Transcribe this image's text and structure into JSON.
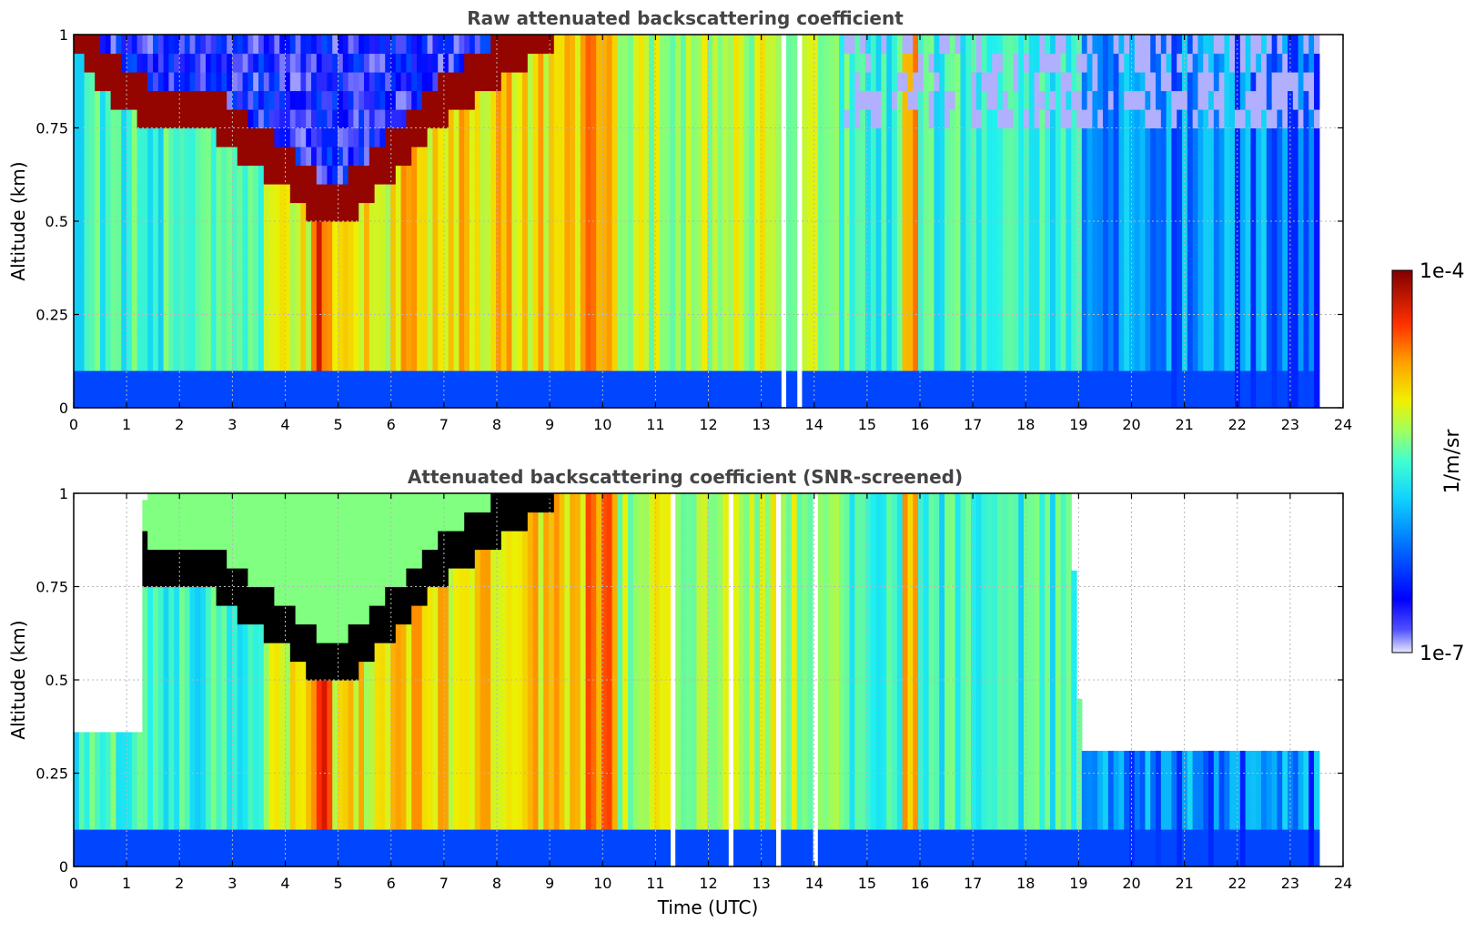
{
  "chart_data": [
    {
      "type": "heatmap",
      "title": "Raw attenuated backscattering coefficient",
      "xlabel": "",
      "ylabel": "Altitude (km)",
      "xlim": [
        0,
        24
      ],
      "ylim": [
        0,
        1
      ],
      "x_ticks": [
        "0",
        "1",
        "2",
        "3",
        "4",
        "5",
        "6",
        "7",
        "8",
        "9",
        "10",
        "11",
        "12",
        "13",
        "14",
        "15",
        "16",
        "17",
        "18",
        "19",
        "20",
        "21",
        "22",
        "23",
        "24"
      ],
      "y_ticks": [
        "0",
        "0.25",
        "0.5",
        "0.75",
        "1"
      ],
      "grid": true,
      "data_end_hour": 23.55,
      "screened": false,
      "cloud_base_km": [
        {
          "t": 0.0,
          "z": 0.92
        },
        {
          "t": 0.5,
          "z": 0.82
        },
        {
          "t": 1.0,
          "z": 0.76
        },
        {
          "t": 1.5,
          "z": 0.72
        },
        {
          "t": 2.0,
          "z": 0.73
        },
        {
          "t": 2.5,
          "z": 0.72
        },
        {
          "t": 3.0,
          "z": 0.66
        },
        {
          "t": 3.5,
          "z": 0.6
        },
        {
          "t": 4.0,
          "z": 0.55
        },
        {
          "t": 4.5,
          "z": 0.48
        },
        {
          "t": 5.0,
          "z": 0.46
        },
        {
          "t": 5.5,
          "z": 0.52
        },
        {
          "t": 6.0,
          "z": 0.6
        },
        {
          "t": 6.5,
          "z": 0.68
        },
        {
          "t": 7.0,
          "z": 0.75
        },
        {
          "t": 7.5,
          "z": 0.8
        },
        {
          "t": 8.0,
          "z": 0.85
        },
        {
          "t": 8.5,
          "z": 0.9
        },
        {
          "t": 9.0,
          "z": 0.95
        },
        {
          "t": 9.5,
          "z": 0.98
        },
        {
          "t": 10.0,
          "z": 1.0
        }
      ]
    },
    {
      "type": "heatmap",
      "title": "Attenuated backscattering coefficient (SNR-screened)",
      "xlabel": "Time (UTC)",
      "ylabel": "Altitude (km)",
      "xlim": [
        0,
        24
      ],
      "ylim": [
        0,
        1
      ],
      "x_ticks": [
        "0",
        "1",
        "2",
        "3",
        "4",
        "5",
        "6",
        "7",
        "8",
        "9",
        "10",
        "11",
        "12",
        "13",
        "14",
        "15",
        "16",
        "17",
        "18",
        "19",
        "20",
        "21",
        "22",
        "23",
        "24"
      ],
      "y_ticks": [
        "0",
        "0.25",
        "0.5",
        "0.75",
        "1"
      ],
      "grid": true,
      "data_end_hour": 23.55,
      "screened": true,
      "screen_top_km": [
        {
          "t": 0.0,
          "z": 0.36
        },
        {
          "t": 1.2,
          "z": 0.36
        },
        {
          "t": 1.3,
          "z": 1.0
        },
        {
          "t": 18.8,
          "z": 1.0
        },
        {
          "t": 19.0,
          "z": 0.31
        },
        {
          "t": 23.55,
          "z": 0.31
        }
      ]
    }
  ],
  "colorbar": {
    "label": "1/m/sr",
    "max_label": "1e-4",
    "min_label": "1e-7",
    "colormap": [
      "#e8e8ff",
      "#0000ff",
      "#00a0ff",
      "#20f0f0",
      "#80ff80",
      "#f0f000",
      "#ff9000",
      "#ff2000",
      "#800000"
    ]
  }
}
